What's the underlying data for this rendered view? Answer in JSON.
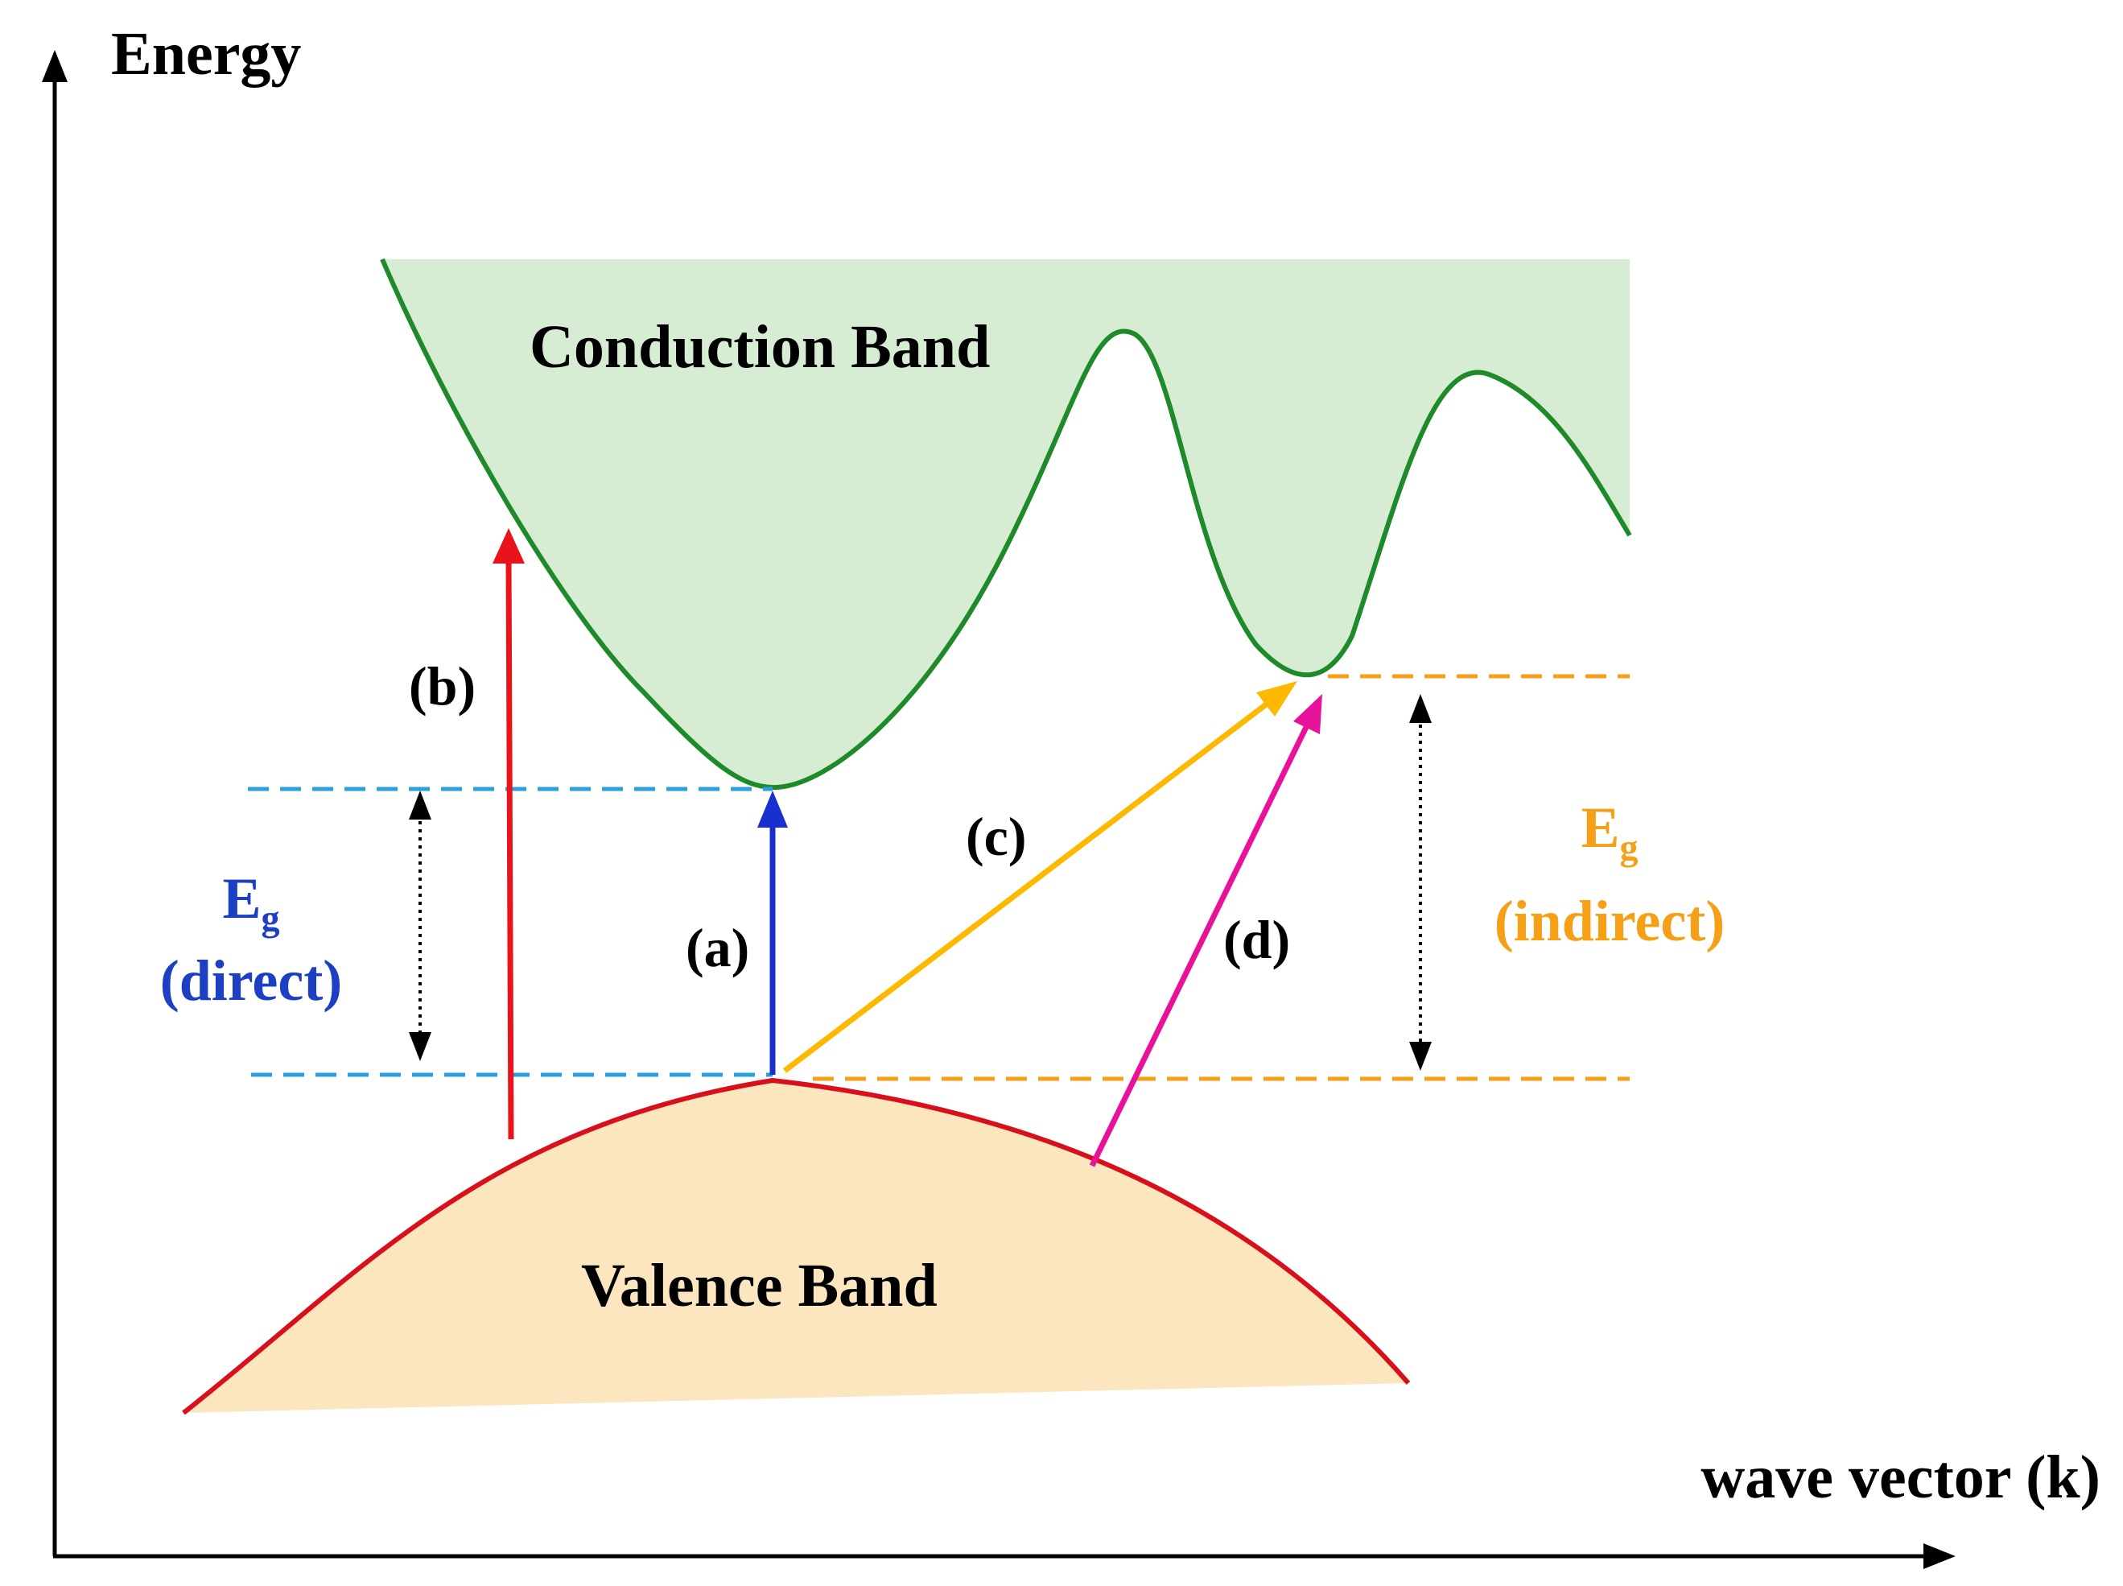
{
  "axes": {
    "y_label": "Energy",
    "x_label": "wave vector (k)"
  },
  "bands": {
    "conduction_label": "Conduction Band",
    "valence_label": "Valence Band"
  },
  "transitions": [
    {
      "id": "a",
      "label": "(a)",
      "color": "#1a2fd0"
    },
    {
      "id": "b",
      "label": "(b)",
      "color": "#e8131b"
    },
    {
      "id": "c",
      "label": "(c)",
      "color": "#fcb900"
    },
    {
      "id": "d",
      "label": "(d)",
      "color": "#e8129a"
    }
  ],
  "gaps": {
    "direct": {
      "symbol": "E",
      "subscript": "g",
      "type": "(direct)",
      "color": "#1d3fc4",
      "line_color": "#2aa0dc"
    },
    "indirect": {
      "symbol": "E",
      "subscript": "g",
      "type": "(indirect)",
      "color": "#f5a017",
      "line_color": "#f5a017"
    }
  },
  "colors": {
    "conduction_fill": "#d6ecd3",
    "conduction_line": "#1e8a2a",
    "valence_fill": "#fbe6c0",
    "valence_line": "#d8101b"
  }
}
